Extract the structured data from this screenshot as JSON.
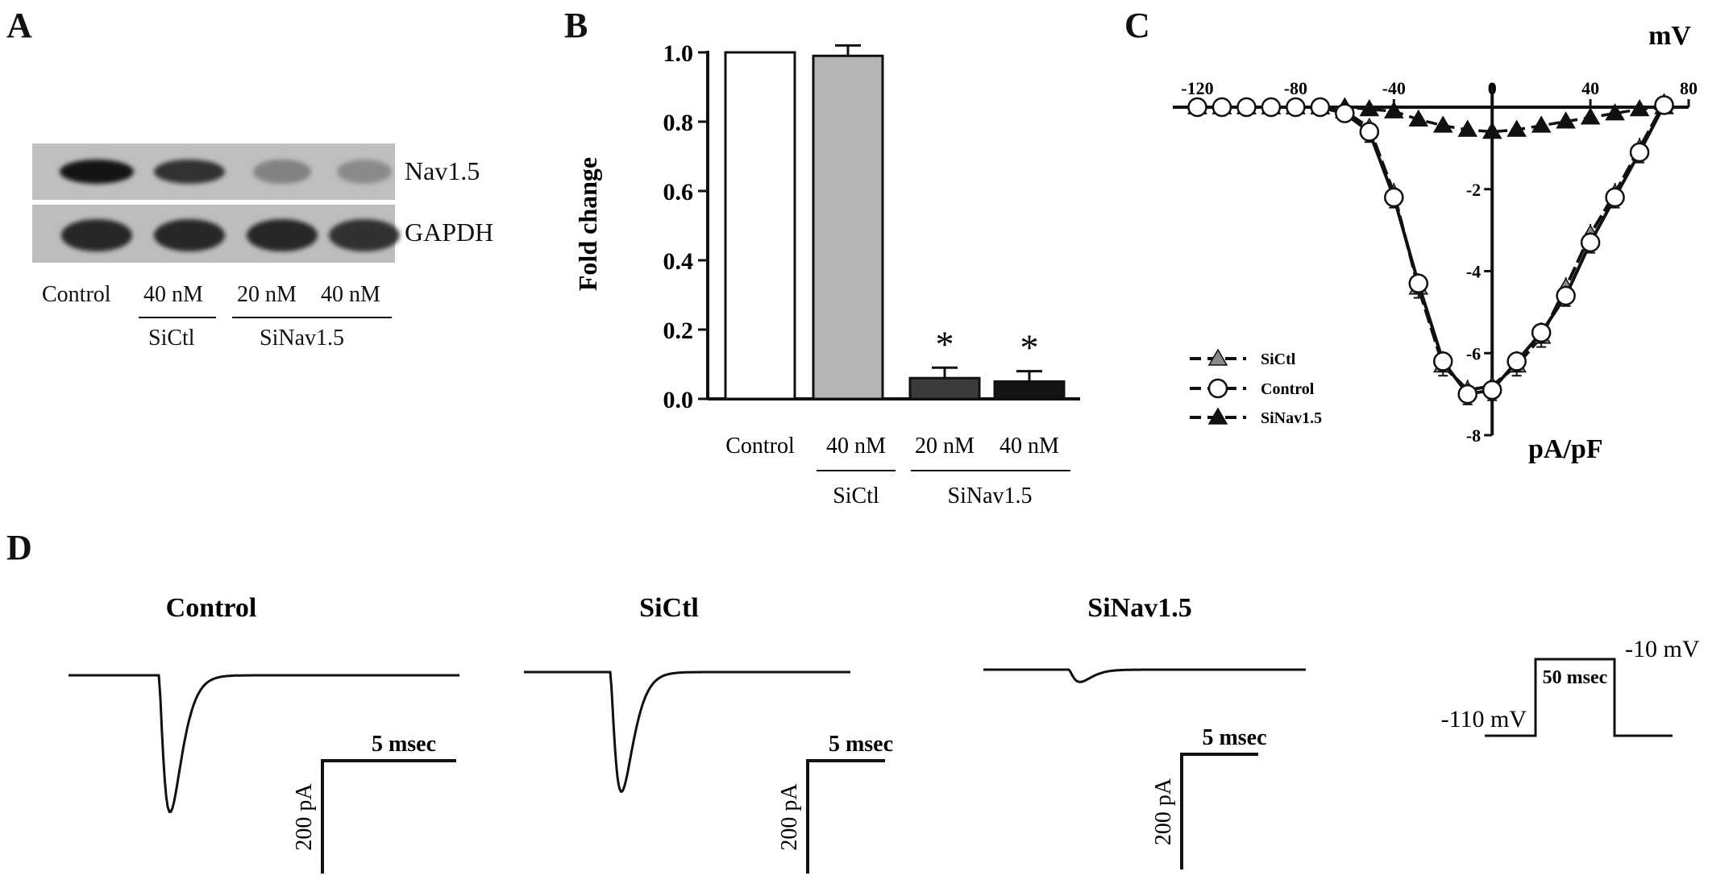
{
  "panels": {
    "a": "A",
    "b": "B",
    "c": "C",
    "d": "D"
  },
  "panel_a": {
    "band_labels": [
      "Nav1.5",
      "GAPDH"
    ],
    "lanes": [
      "Control",
      "40 nM",
      "20 nM",
      "40 nM"
    ],
    "groups": [
      "SiCtl",
      "SiNav1.5"
    ],
    "nav_intensity": [
      1.0,
      0.85,
      0.35,
      0.28
    ],
    "gapdh_intensity": [
      0.9,
      0.9,
      0.9,
      0.85
    ]
  },
  "chart_data": [
    {
      "type": "bar",
      "title": "",
      "ylabel": "Fold change",
      "xlabel": "",
      "ylim": [
        0,
        1.0
      ],
      "yticks": [
        "0.0",
        "0.2",
        "0.4",
        "0.6",
        "0.8",
        "1.0"
      ],
      "categories": [
        "Control",
        "40 nM",
        "20 nM",
        "40 nM"
      ],
      "groups": [
        "SiCtl",
        "SiNav1.5"
      ],
      "values": [
        1.0,
        0.99,
        0.06,
        0.05
      ],
      "errors": [
        0.0,
        0.03,
        0.03,
        0.03
      ],
      "significance": [
        "",
        "",
        "*",
        "*"
      ],
      "colors": [
        "#ffffff",
        "#b5b5b5",
        "#3a3a3a",
        "#141414"
      ]
    },
    {
      "type": "line",
      "title": "",
      "xlabel": "mV",
      "ylabel": "pA/pF",
      "xlim": [
        -130,
        80
      ],
      "ylim": [
        -8,
        0
      ],
      "xticks": [
        "-120",
        "-80",
        "-40",
        "0",
        "40",
        "80"
      ],
      "yticks": [
        "-2",
        "-4",
        "-6",
        "-8"
      ],
      "legend_position": "bottom-left",
      "x": [
        -120,
        -110,
        -100,
        -90,
        -80,
        -70,
        -60,
        -50,
        -40,
        -30,
        -20,
        -10,
        0,
        10,
        20,
        30,
        40,
        50,
        60,
        70
      ],
      "series": [
        {
          "name": "SiCtl",
          "marker": "triangle-gray",
          "values": [
            0,
            0,
            0,
            0,
            0,
            0,
            -0.1,
            -0.5,
            -2.1,
            -4.4,
            -6.3,
            -6.9,
            -6.8,
            -6.3,
            -5.6,
            -4.4,
            -3.1,
            -2.1,
            -1.0,
            0.1
          ]
        },
        {
          "name": "Control",
          "marker": "circle-open",
          "values": [
            0,
            0,
            0,
            0,
            0,
            0,
            -0.15,
            -0.6,
            -2.2,
            -4.3,
            -6.2,
            -7.0,
            -6.9,
            -6.2,
            -5.5,
            -4.6,
            -3.3,
            -2.2,
            -1.1,
            0.05
          ]
        },
        {
          "name": "SiNav1.5",
          "marker": "triangle-black",
          "values": [
            0,
            0,
            0,
            0,
            0,
            0,
            0,
            -0.05,
            -0.1,
            -0.3,
            -0.45,
            -0.55,
            -0.6,
            -0.55,
            -0.45,
            -0.35,
            -0.25,
            -0.15,
            -0.05,
            0
          ]
        }
      ]
    }
  ],
  "panel_d": {
    "traces": [
      {
        "title": "Control",
        "peak": 1.0,
        "scale_time": "5 msec",
        "scale_current": "200 pA"
      },
      {
        "title": "SiCtl",
        "peak": 0.94,
        "scale_time": "5 msec",
        "scale_current": "200 pA"
      },
      {
        "title": "SiNav1.5",
        "peak": 0.09,
        "scale_time": "5 msec",
        "scale_current": "200 pA"
      }
    ],
    "protocol": {
      "holding": "-110 mV",
      "step": "-10 mV",
      "duration": "50 msec"
    }
  }
}
